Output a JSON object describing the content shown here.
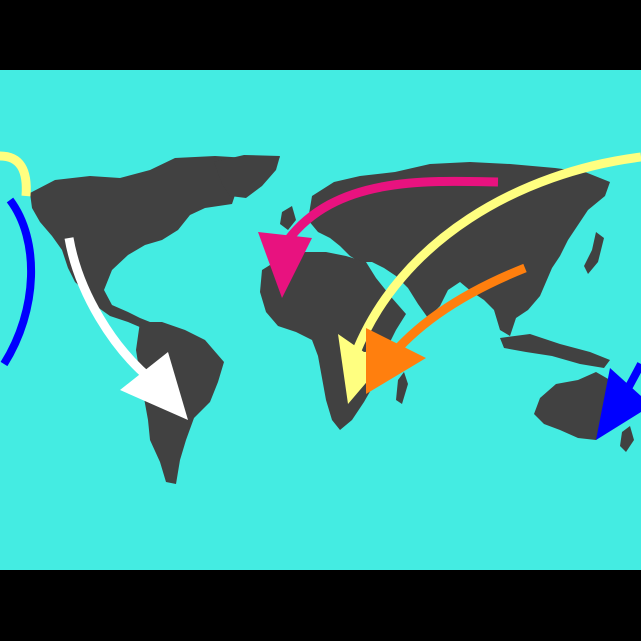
{
  "colors": {
    "frame": "#000000",
    "ocean": "#44ECE2",
    "land": "#414141"
  },
  "routes": [
    {
      "id": "americas-north-south",
      "color": "#FFFFFF",
      "arrowhead": "filled"
    },
    {
      "id": "siberia-west-africa",
      "color": "#E8127F",
      "arrowhead": "filled"
    },
    {
      "id": "pacific-east-africa",
      "color": "#FFFF80",
      "arrowhead": "open"
    },
    {
      "id": "china-southern-africa",
      "color": "#FF7F0E",
      "arrowhead": "filled"
    },
    {
      "id": "pacific-wrap-yellow",
      "color": "#FFFF80",
      "arrowhead": "none"
    },
    {
      "id": "pacific-wrap-blue",
      "color": "#0000FF",
      "arrowhead": "none"
    },
    {
      "id": "pacific-to-australia",
      "color": "#0000FF",
      "arrowhead": "filled"
    }
  ]
}
